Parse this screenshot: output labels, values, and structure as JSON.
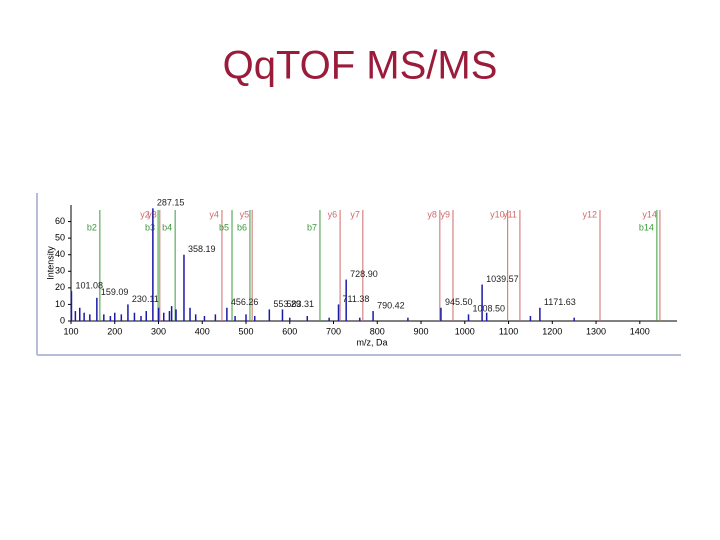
{
  "chart_data": {
    "type": "spectrum",
    "title": "QqTOF MS/MS",
    "x_label": "m/z, Da",
    "y_label": "Intensity",
    "xlim": [
      100,
      1485
    ],
    "ylim": [
      0,
      70
    ],
    "xticks": [
      100,
      200,
      300,
      400,
      500,
      600,
      700,
      800,
      900,
      1000,
      1100,
      1200,
      1300,
      1400
    ],
    "yticks": [
      0,
      10,
      20,
      30,
      40,
      50,
      60
    ],
    "peak_color": "#1a1aa8",
    "x": [
      101.08,
      110,
      120,
      130,
      143,
      159.09,
      175,
      190,
      200,
      215,
      230.11,
      245,
      260,
      272,
      287.15,
      300,
      312,
      325,
      330,
      340,
      358.19,
      372,
      385,
      405,
      430,
      456.26,
      475,
      500,
      520,
      553.29,
      583.31,
      600,
      640,
      690,
      711.38,
      728.9,
      760,
      790.42,
      870,
      945.5,
      1008.5,
      1039.57,
      1050,
      1150,
      1171.63,
      1250
    ],
    "values": [
      18,
      6,
      8,
      5,
      4,
      14,
      4,
      3,
      5,
      4,
      10,
      5,
      3,
      6,
      68,
      8,
      5,
      6,
      9,
      7,
      40,
      8,
      4,
      3,
      4,
      8,
      3,
      4,
      3,
      7,
      7,
      2,
      3,
      2,
      10,
      25,
      2,
      6,
      2,
      8,
      4,
      22,
      5,
      3,
      8,
      2
    ],
    "x_labels": [
      "101.08",
      null,
      null,
      null,
      null,
      "159.09",
      null,
      null,
      null,
      null,
      "230.11",
      null,
      null,
      null,
      "287.15",
      null,
      null,
      null,
      null,
      null,
      "358.19",
      null,
      null,
      null,
      null,
      "456.26",
      null,
      null,
      null,
      "553.29",
      "583.31",
      null,
      null,
      null,
      "711.38",
      "728.90",
      null,
      "790.42",
      null,
      "945.50",
      "1008.50",
      "1039.57",
      null,
      null,
      "1171.63",
      null
    ],
    "fragments": [
      {
        "name": "b2",
        "x": 166,
        "color": "#3a9a3a"
      },
      {
        "name": "y2",
        "x": 287,
        "color": "#d06a6a"
      },
      {
        "name": "b3",
        "x": 299,
        "color": "#3a9a3a"
      },
      {
        "name": "y3",
        "x": 303,
        "color": "#d06a6a"
      },
      {
        "name": "b4",
        "x": 338,
        "color": "#3a9a3a"
      },
      {
        "name": "y4",
        "x": 445,
        "color": "#d06a6a"
      },
      {
        "name": "b5",
        "x": 468,
        "color": "#3a9a3a"
      },
      {
        "name": "b6",
        "x": 509,
        "color": "#3a9a3a"
      },
      {
        "name": "y5",
        "x": 514,
        "color": "#d06a6a"
      },
      {
        "name": "b7",
        "x": 669,
        "color": "#3a9a3a"
      },
      {
        "name": "y6",
        "x": 715,
        "color": "#d06a6a"
      },
      {
        "name": "y7",
        "x": 767,
        "color": "#d06a6a"
      },
      {
        "name": "y8",
        "x": 943,
        "color": "#d06a6a"
      },
      {
        "name": "y9",
        "x": 973,
        "color": "#d06a6a"
      },
      {
        "name": "y10",
        "x": 1098,
        "color": "#d06a6a"
      },
      {
        "name": "y11",
        "x": 1126,
        "color": "#d06a6a"
      },
      {
        "name": "y12",
        "x": 1309,
        "color": "#d06a6a"
      },
      {
        "name": "b14",
        "x": 1439,
        "color": "#3a9a3a"
      },
      {
        "name": "y14",
        "x": 1446,
        "color": "#d06a6a"
      }
    ]
  }
}
